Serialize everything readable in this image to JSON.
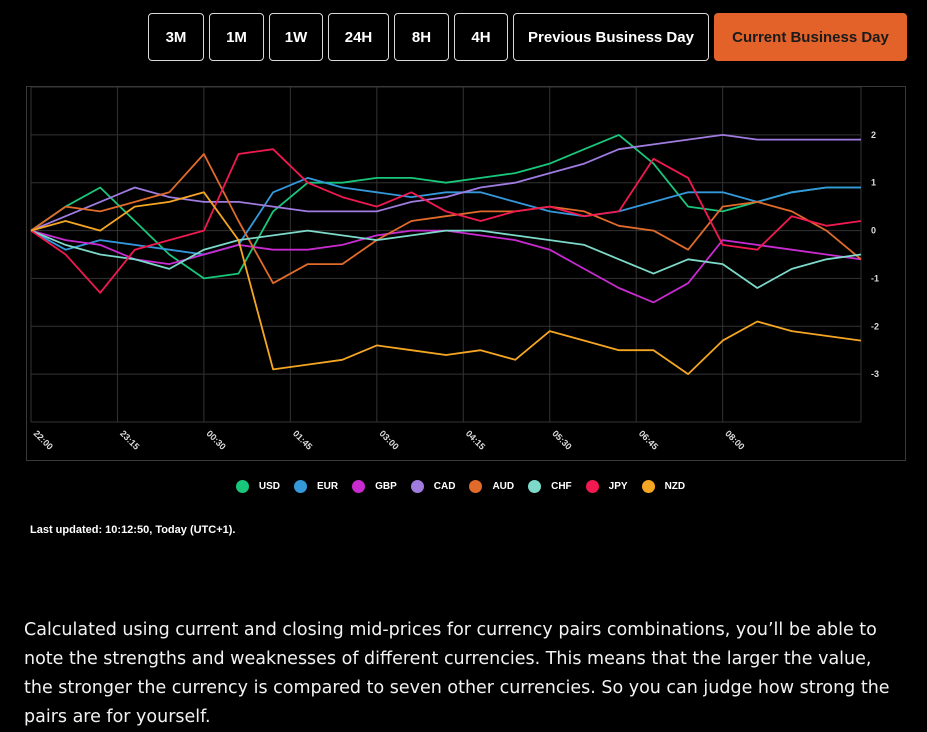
{
  "range_buttons": [
    {
      "label": "3M",
      "active": false
    },
    {
      "label": "1M",
      "active": false
    },
    {
      "label": "1W",
      "active": false
    },
    {
      "label": "24H",
      "active": false
    },
    {
      "label": "8H",
      "active": false
    },
    {
      "label": "4H",
      "active": false
    },
    {
      "label": "Previous Business Day",
      "active": false
    },
    {
      "label": "Current Business Day",
      "active": true
    }
  ],
  "colors": {
    "active_button": "#e2622a",
    "grid": "#333333",
    "background": "#000000"
  },
  "last_updated": "Last updated: 10:12:50, Today (UTC+1).",
  "description": "Calculated using current and closing mid-prices for currency pairs combinations, you’ll be able to note the strengths and weaknesses of different currencies. This means that the larger the value, the stronger the currency is compared to seven other currencies. So you can judge how strong the pairs are for yourself.",
  "chart_data": {
    "type": "line",
    "x_ticks": [
      "22:00",
      "23:15",
      "00:30",
      "01:45",
      "03:00",
      "04:15",
      "05:30",
      "06:45",
      "08:00"
    ],
    "x": [
      "22:00",
      "22:30",
      "23:00",
      "23:30",
      "00:00",
      "00:30",
      "01:00",
      "01:30",
      "02:00",
      "02:30",
      "03:00",
      "03:30",
      "04:00",
      "04:30",
      "05:00",
      "05:30",
      "06:00",
      "06:30",
      "07:00",
      "07:30",
      "08:00",
      "08:30",
      "09:00",
      "09:30",
      "10:00"
    ],
    "y_ticks": [
      2,
      1,
      0,
      -1,
      -2,
      -3
    ],
    "ylim": [
      -4,
      3
    ],
    "grid": true,
    "legend": "bottom",
    "series": [
      {
        "name": "USD",
        "color": "#19c77b",
        "values": [
          0,
          0.5,
          0.9,
          0.2,
          -0.5,
          -1.0,
          -0.9,
          0.4,
          1.0,
          1.0,
          1.1,
          1.1,
          1.0,
          1.1,
          1.2,
          1.4,
          1.7,
          2.0,
          1.4,
          0.5,
          0.4,
          0.6,
          0.8,
          0.9,
          0.9
        ]
      },
      {
        "name": "EUR",
        "color": "#3498db",
        "values": [
          0,
          -0.4,
          -0.2,
          -0.3,
          -0.4,
          -0.5,
          -0.3,
          0.8,
          1.1,
          0.9,
          0.8,
          0.7,
          0.8,
          0.8,
          0.6,
          0.4,
          0.3,
          0.4,
          0.6,
          0.8,
          0.8,
          0.6,
          0.8,
          0.9,
          0.9
        ]
      },
      {
        "name": "GBP",
        "color": "#c82bd0",
        "values": [
          0,
          -0.2,
          -0.3,
          -0.6,
          -0.7,
          -0.5,
          -0.3,
          -0.4,
          -0.4,
          -0.3,
          -0.1,
          0,
          0,
          -0.1,
          -0.2,
          -0.4,
          -0.8,
          -1.2,
          -1.5,
          -1.1,
          -0.2,
          -0.3,
          -0.4,
          -0.5,
          -0.6
        ]
      },
      {
        "name": "CAD",
        "color": "#a07be0",
        "values": [
          0,
          0.3,
          0.6,
          0.9,
          0.7,
          0.6,
          0.6,
          0.5,
          0.4,
          0.4,
          0.4,
          0.6,
          0.7,
          0.9,
          1.0,
          1.2,
          1.4,
          1.7,
          1.8,
          1.9,
          2.0,
          1.9,
          1.9,
          1.9,
          1.9
        ]
      },
      {
        "name": "AUD",
        "color": "#e06b2a",
        "values": [
          0,
          0.5,
          0.4,
          0.6,
          0.8,
          1.6,
          0.2,
          -1.1,
          -0.7,
          -0.7,
          -0.2,
          0.2,
          0.3,
          0.4,
          0.4,
          0.5,
          0.4,
          0.1,
          0,
          -0.4,
          0.5,
          0.6,
          0.4,
          0,
          -0.6
        ]
      },
      {
        "name": "CHF",
        "color": "#7dd9c9",
        "values": [
          0,
          -0.3,
          -0.5,
          -0.6,
          -0.8,
          -0.4,
          -0.2,
          -0.1,
          0,
          -0.1,
          -0.2,
          -0.1,
          0,
          0,
          -0.1,
          -0.2,
          -0.3,
          -0.6,
          -0.9,
          -0.6,
          -0.7,
          -1.2,
          -0.8,
          -0.6,
          -0.5
        ]
      },
      {
        "name": "JPY",
        "color": "#f01950",
        "values": [
          0,
          -0.5,
          -1.3,
          -0.4,
          -0.2,
          0,
          1.6,
          1.7,
          1.0,
          0.7,
          0.5,
          0.8,
          0.4,
          0.2,
          0.4,
          0.5,
          0.3,
          0.4,
          1.5,
          1.1,
          -0.3,
          -0.4,
          0.3,
          0.1,
          0.2
        ]
      },
      {
        "name": "NZD",
        "color": "#f5a623",
        "values": [
          0,
          0.2,
          0,
          0.5,
          0.6,
          0.8,
          -0.2,
          -2.9,
          -2.8,
          -2.7,
          -2.4,
          -2.5,
          -2.6,
          -2.5,
          -2.7,
          -2.1,
          -2.3,
          -2.5,
          -2.5,
          -3.0,
          -2.3,
          -1.9,
          -2.1,
          -2.2,
          -2.3
        ]
      }
    ]
  }
}
